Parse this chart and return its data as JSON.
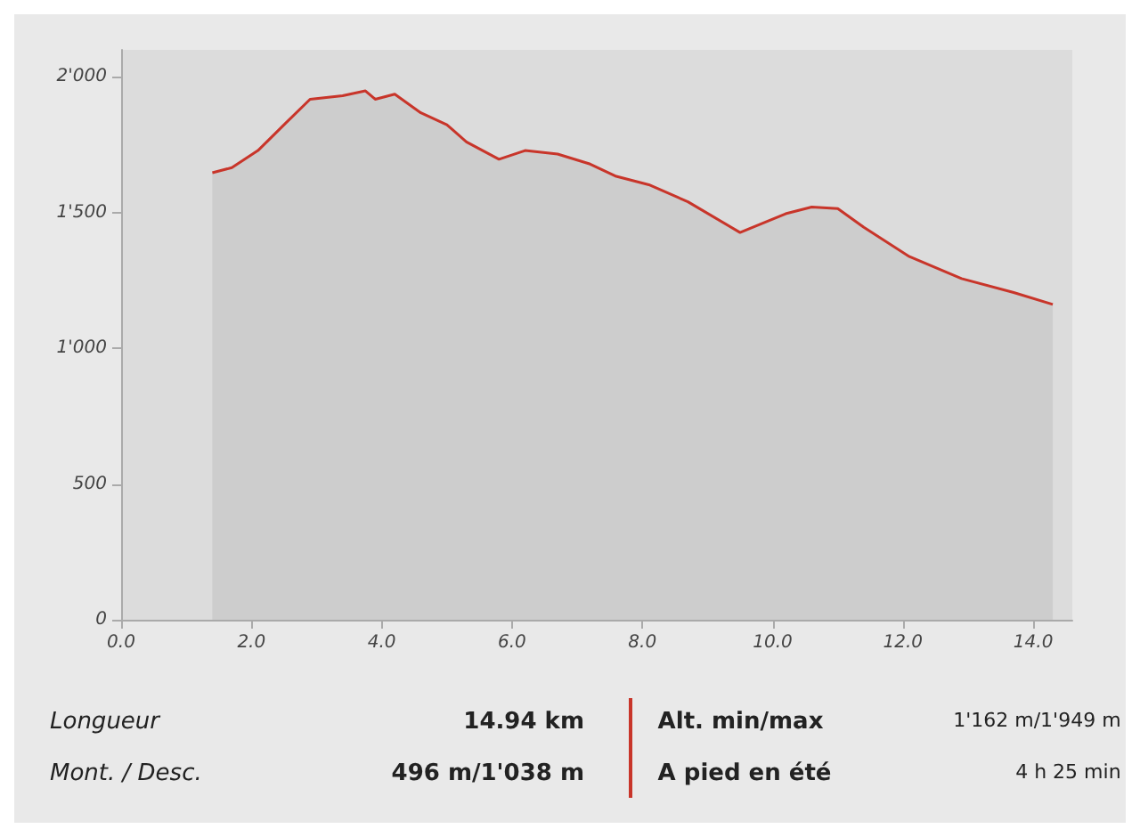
{
  "chart_data": {
    "type": "area",
    "x": [
      1.4,
      1.7,
      2.1,
      2.5,
      2.9,
      3.4,
      3.75,
      3.9,
      4.2,
      4.6,
      5.0,
      5.3,
      5.8,
      6.2,
      6.7,
      7.2,
      7.6,
      8.1,
      8.7,
      9.5,
      10.2,
      10.6,
      11.0,
      11.4,
      12.1,
      12.9,
      13.7,
      14.3
    ],
    "series": [
      {
        "color": "#c8352a",
        "values": [
          1647,
          1666,
          1729,
          1824,
          1918,
          1931,
          1949,
          1918,
          1937,
          1868,
          1824,
          1761,
          1697,
          1729,
          1716,
          1679,
          1634,
          1603,
          1540,
          1427,
          1496,
          1521,
          1515,
          1446,
          1338,
          1257,
          1206,
          1162
        ]
      }
    ],
    "xlim": [
      0,
      14.6
    ],
    "xticks": [
      {
        "value": 0,
        "label": "0.0"
      },
      {
        "value": 2,
        "label": "2.0"
      },
      {
        "value": 4,
        "label": "4.0"
      },
      {
        "value": 6,
        "label": "6.0"
      },
      {
        "value": 8,
        "label": "8.0"
      },
      {
        "value": 10,
        "label": "10.0"
      },
      {
        "value": 12,
        "label": "12.0"
      },
      {
        "value": 14,
        "label": "14.0"
      }
    ],
    "ylim": [
      0,
      2100
    ],
    "yticks": [
      0,
      500,
      {
        "value": 1000,
        "label": "1'000"
      },
      {
        "value": 1500,
        "label": "1'500"
      },
      {
        "value": 2000,
        "label": "2'000"
      }
    ],
    "grid": false,
    "annotations": [
      "Longueur",
      "14.94 km",
      "Alt. min/max",
      "1'162 m/1'949 m",
      "Mont. / Desc.",
      "496 m/1'038 m",
      "A pied en été",
      "4 h 25 min"
    ]
  }
}
